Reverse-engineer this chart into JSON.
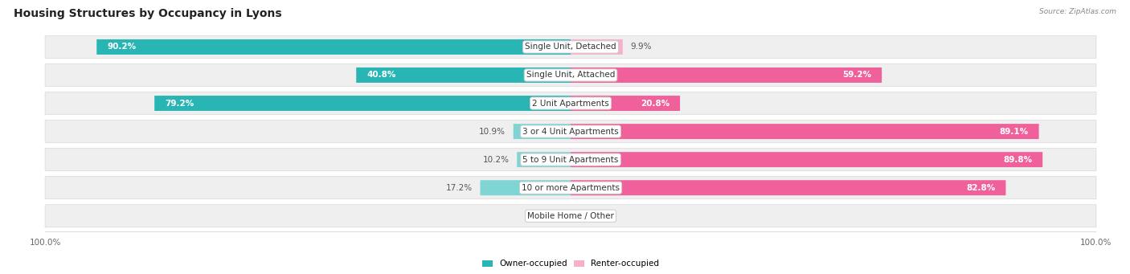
{
  "title": "Housing Structures by Occupancy in Lyons",
  "source": "Source: ZipAtlas.com",
  "categories": [
    "Single Unit, Detached",
    "Single Unit, Attached",
    "2 Unit Apartments",
    "3 or 4 Unit Apartments",
    "5 to 9 Unit Apartments",
    "10 or more Apartments",
    "Mobile Home / Other"
  ],
  "owner_values": [
    90.2,
    40.8,
    79.2,
    10.9,
    10.2,
    17.2,
    0.0
  ],
  "renter_values": [
    9.9,
    59.2,
    20.8,
    89.1,
    89.8,
    82.8,
    0.0
  ],
  "owner_color_dark": "#2ab5b5",
  "owner_color_light": "#7fd4d4",
  "renter_color_dark": "#f0609a",
  "renter_color_light": "#f7b0cc",
  "row_bg_color": "#efefef",
  "row_border_color": "#d8d8d8",
  "title_fontsize": 10,
  "label_fontsize": 7.5,
  "tick_fontsize": 7.5,
  "value_threshold": 20
}
